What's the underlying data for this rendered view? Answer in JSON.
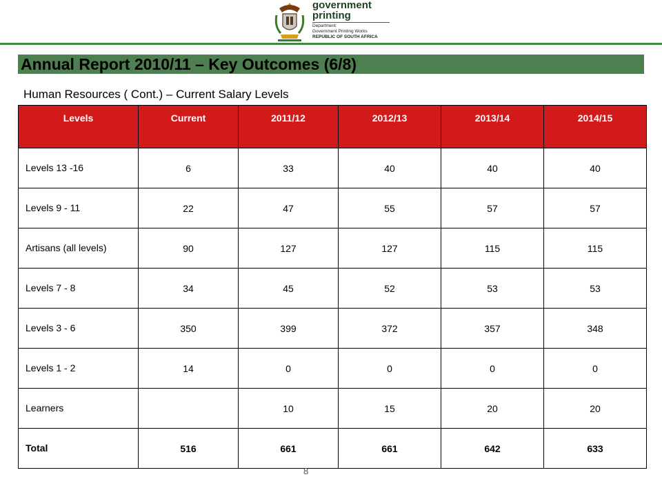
{
  "logo": {
    "line1": "government",
    "line2": "printing",
    "dept_label": "Department:",
    "dept_name": "Government Printing Works",
    "country": "REPUBLIC OF SOUTH AFRICA"
  },
  "title": "Annual Report 2010/11 – Key Outcomes (6/8)",
  "subtitle": "Human Resources ( Cont.) – Current Salary Levels",
  "table": {
    "headers": [
      "Levels",
      "Current",
      "2011/12",
      "2012/13",
      "2013/14",
      "2014/15"
    ],
    "rows": [
      [
        "Levels 13 -16",
        "6",
        "33",
        "40",
        "40",
        "40"
      ],
      [
        "Levels 9 - 11",
        "22",
        "47",
        "55",
        "57",
        "57"
      ],
      [
        "Artisans (all levels)",
        "90",
        "127",
        "127",
        "115",
        "115"
      ],
      [
        "Levels 7 - 8",
        "34",
        "45",
        "52",
        "53",
        "53"
      ],
      [
        "Levels 3 - 6",
        "350",
        "399",
        "372",
        "357",
        "348"
      ],
      [
        "Levels 1 - 2",
        "14",
        "0",
        "0",
        "0",
        "0"
      ],
      [
        "Learners",
        "",
        "10",
        "15",
        "20",
        "20"
      ],
      [
        "Total",
        "516",
        "661",
        "661",
        "642",
        "633"
      ]
    ]
  },
  "page_number": "8",
  "colors": {
    "header_red": "#d31a1a",
    "title_green": "#4d7f50",
    "rule_green": "#3d8a3a"
  }
}
